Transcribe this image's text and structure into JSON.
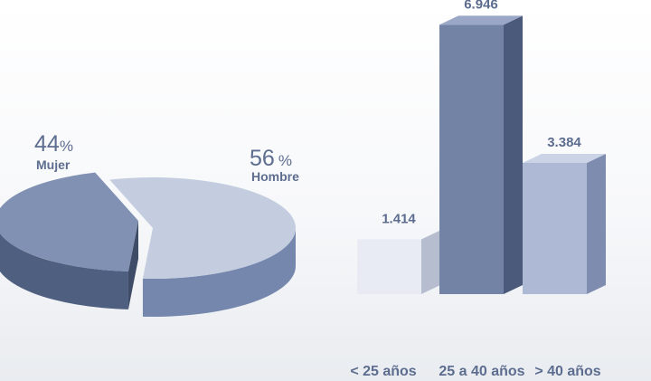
{
  "chart_data": [
    {
      "type": "pie",
      "slices": [
        {
          "label": "Mujer",
          "value": 44,
          "unit": "%",
          "color": "#8191b3",
          "side_color": "#4f5f80"
        },
        {
          "label": "Hombre",
          "value": 56,
          "unit": "%",
          "color": "#c4cde0",
          "side_color": "#7587ad"
        }
      ]
    },
    {
      "type": "bar",
      "categories": [
        "< 25 años",
        "25 a 40 años",
        "> 40 años"
      ],
      "values": [
        1.414,
        6.946,
        3.384
      ],
      "value_labels": [
        "1.414",
        "6.946",
        "3.384"
      ],
      "ylim": [
        0,
        7
      ],
      "colors": [
        "#e8ebf3",
        "#7383a6",
        "#aeb9d6"
      ],
      "side_colors": [
        "#b6bdcf",
        "#4b5a7a",
        "#7e8cb0"
      ],
      "top_colors": [
        "#f5f6fa",
        "#9aa7c6",
        "#cbd3e6"
      ]
    }
  ],
  "text_color": "#5d6d8f"
}
